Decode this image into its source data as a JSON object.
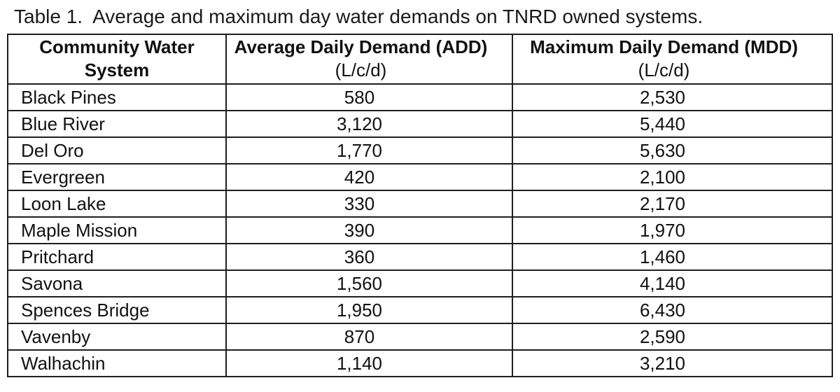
{
  "title": "Table 1.  Average and maximum day water demands on TNRD owned systems.",
  "table": {
    "columns": [
      {
        "line1": "Community Water",
        "line2": "System",
        "unit": ""
      },
      {
        "line1": "Average Daily Demand (ADD)",
        "unit": "(L/c/d)"
      },
      {
        "line1": "Maximum Daily Demand (MDD)",
        "unit": "(L/c/d)"
      }
    ],
    "rows": [
      {
        "system": "Black Pines",
        "add": "580",
        "mdd": "2,530"
      },
      {
        "system": "Blue River",
        "add": "3,120",
        "mdd": "5,440"
      },
      {
        "system": "Del Oro",
        "add": "1,770",
        "mdd": "5,630"
      },
      {
        "system": "Evergreen",
        "add": "420",
        "mdd": "2,100"
      },
      {
        "system": "Loon Lake",
        "add": "330",
        "mdd": "2,170"
      },
      {
        "system": "Maple Mission",
        "add": "390",
        "mdd": "1,970"
      },
      {
        "system": "Pritchard",
        "add": "360",
        "mdd": "1,460"
      },
      {
        "system": "Savona",
        "add": "1,560",
        "mdd": "4,140"
      },
      {
        "system": "Spences Bridge",
        "add": "1,950",
        "mdd": "6,430"
      },
      {
        "system": "Vavenby",
        "add": "870",
        "mdd": "2,590"
      },
      {
        "system": "Walhachin",
        "add": "1,140",
        "mdd": "3,210"
      }
    ]
  },
  "colors": {
    "border": "#1f1f1f",
    "text": "#111111",
    "background": "#ffffff"
  }
}
